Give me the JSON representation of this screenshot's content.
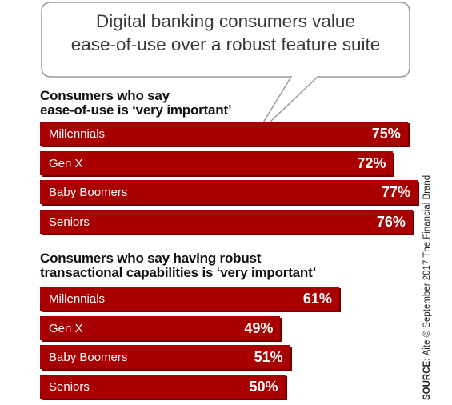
{
  "callout": {
    "line1": "Digital banking consumers value",
    "line2": "ease-of-use over a robust feature suite"
  },
  "source": {
    "label": "SOURCE:",
    "text": "Aite © September 2017 The Financial Brand"
  },
  "colors": {
    "bar": "#a80000",
    "bar_shadow": "#6e0000",
    "callout_border": "#9a9a9a"
  },
  "chart_data": [
    {
      "type": "bar",
      "orientation": "horizontal",
      "title": "Consumers who say\nease-of-use is ‘very important’",
      "categories": [
        "Millennials",
        "Gen X",
        "Baby Boomers",
        "Seniors"
      ],
      "values": [
        75,
        72,
        77,
        76
      ],
      "value_labels": [
        "75%",
        "72%",
        "77%",
        "76%"
      ],
      "unit": "%"
    },
    {
      "type": "bar",
      "orientation": "horizontal",
      "title": "Consumers who say having robust\ntransactional capabilities is ‘very important’",
      "categories": [
        "Millennials",
        "Gen X",
        "Baby Boomers",
        "Seniors"
      ],
      "values": [
        61,
        49,
        51,
        50
      ],
      "value_labels": [
        "61%",
        "49%",
        "51%",
        "50%"
      ],
      "unit": "%"
    }
  ]
}
